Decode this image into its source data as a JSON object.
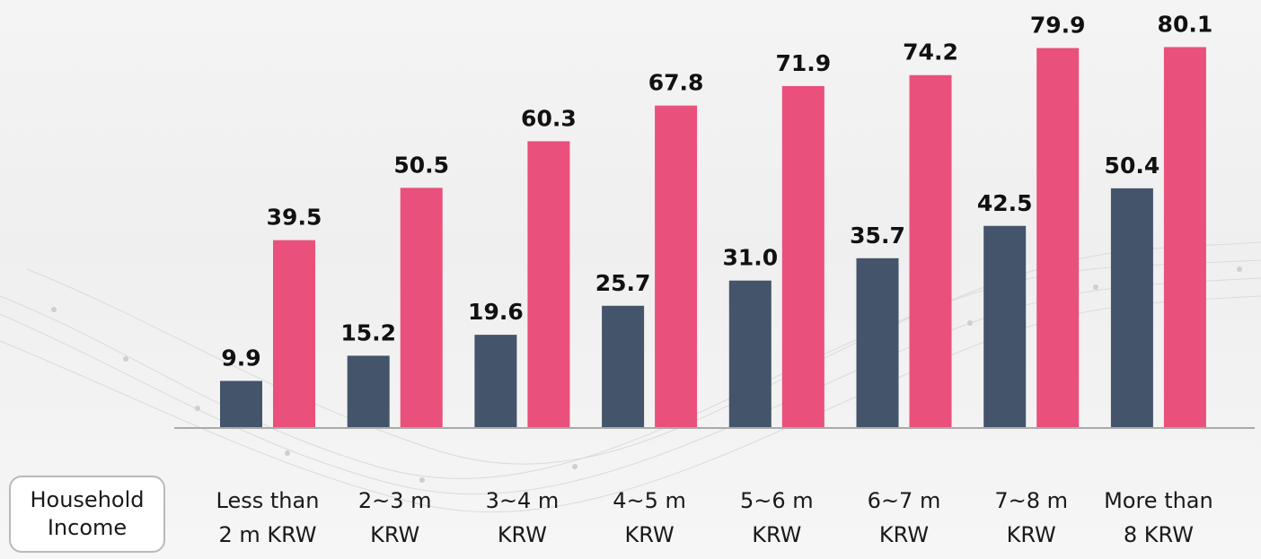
{
  "chart_data": {
    "type": "bar",
    "xlabel_lines": [
      "Household",
      "Income"
    ],
    "categories": [
      [
        "Less than",
        "2 m KRW"
      ],
      [
        "2~3 m",
        "KRW"
      ],
      [
        "3~4 m",
        "KRW"
      ],
      [
        "4~5 m",
        "KRW"
      ],
      [
        "5~6 m",
        "KRW"
      ],
      [
        "6~7 m",
        "KRW"
      ],
      [
        "7~8 m",
        "KRW"
      ],
      [
        "More than",
        "8 KRW"
      ]
    ],
    "series": [
      {
        "color": "#44546a",
        "values": [
          9.9,
          15.2,
          19.6,
          25.7,
          31.0,
          35.7,
          42.5,
          50.4
        ],
        "labels": [
          "9.9",
          "15.2",
          "19.6",
          "25.7",
          "31.0",
          "35.7",
          "42.5",
          "50.4"
        ]
      },
      {
        "color": "#e9507b",
        "values": [
          39.5,
          50.5,
          60.3,
          67.8,
          71.9,
          74.2,
          79.9,
          80.1
        ],
        "labels": [
          "39.5",
          "50.5",
          "60.3",
          "67.8",
          "71.9",
          "74.2",
          "79.9",
          "80.1"
        ]
      }
    ],
    "ylim": [
      0,
      88
    ],
    "grid": false,
    "legend": "none",
    "data_labels": true
  }
}
